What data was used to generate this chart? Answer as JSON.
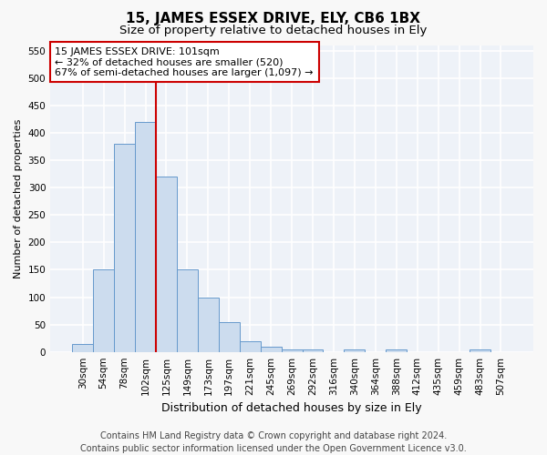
{
  "title": "15, JAMES ESSEX DRIVE, ELY, CB6 1BX",
  "subtitle": "Size of property relative to detached houses in Ely",
  "xlabel": "Distribution of detached houses by size in Ely",
  "ylabel": "Number of detached properties",
  "categories": [
    "30sqm",
    "54sqm",
    "78sqm",
    "102sqm",
    "125sqm",
    "149sqm",
    "173sqm",
    "197sqm",
    "221sqm",
    "245sqm",
    "269sqm",
    "292sqm",
    "316sqm",
    "340sqm",
    "364sqm",
    "388sqm",
    "412sqm",
    "435sqm",
    "459sqm",
    "483sqm",
    "507sqm"
  ],
  "values": [
    15,
    150,
    380,
    420,
    320,
    150,
    100,
    55,
    20,
    10,
    5,
    5,
    0,
    5,
    0,
    5,
    0,
    0,
    0,
    5,
    0
  ],
  "bar_color": "#ccdcee",
  "bar_edge_color": "#6699cc",
  "vline_bin_index": 3,
  "vline_color": "#cc0000",
  "annotation_text": "15 JAMES ESSEX DRIVE: 101sqm\n← 32% of detached houses are smaller (520)\n67% of semi-detached houses are larger (1,097) →",
  "annotation_box_facecolor": "#ffffff",
  "annotation_box_edgecolor": "#cc0000",
  "footer_text": "Contains HM Land Registry data © Crown copyright and database right 2024.\nContains public sector information licensed under the Open Government Licence v3.0.",
  "ylim": [
    0,
    560
  ],
  "yticks": [
    0,
    50,
    100,
    150,
    200,
    250,
    300,
    350,
    400,
    450,
    500,
    550
  ],
  "fig_bg_color": "#f8f8f8",
  "ax_bg_color": "#eef2f8",
  "grid_color": "#ffffff",
  "title_fontsize": 11,
  "subtitle_fontsize": 9.5,
  "xlabel_fontsize": 9,
  "ylabel_fontsize": 8,
  "tick_fontsize": 7.5,
  "annotation_fontsize": 8,
  "footer_fontsize": 7
}
